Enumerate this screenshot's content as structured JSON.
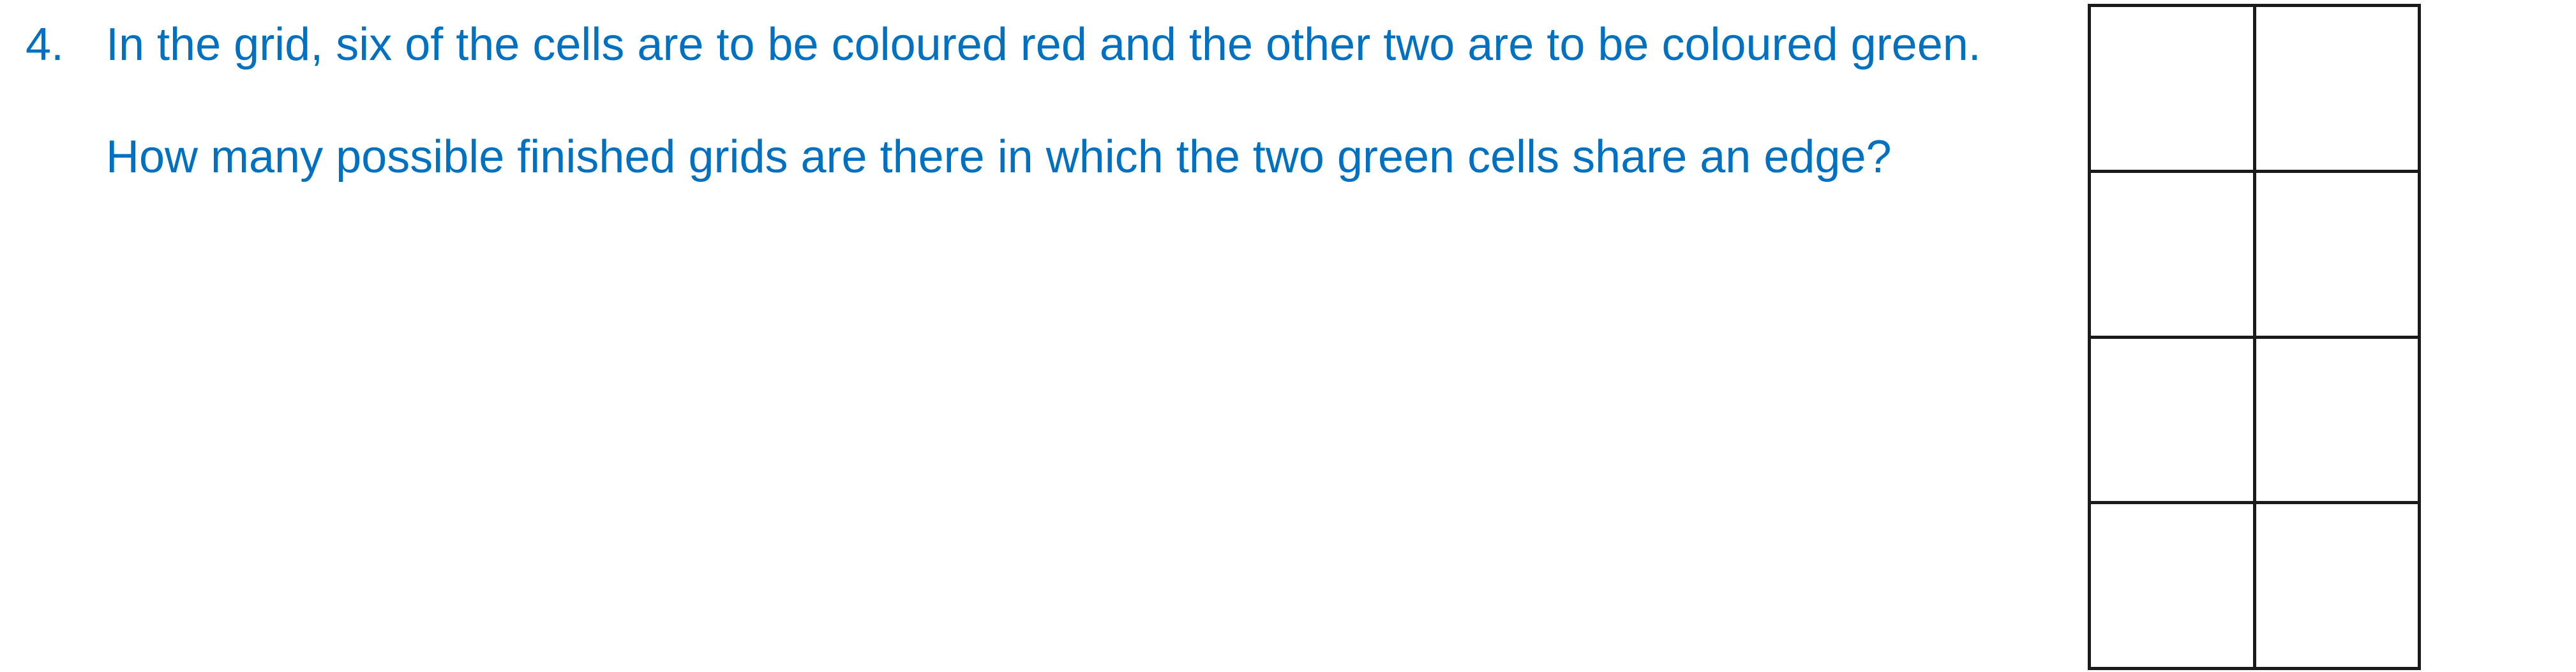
{
  "colors": {
    "text": "#0070c0",
    "grid_line": "#1a1a1a",
    "cell_fill": "#ffffff"
  },
  "question": {
    "number": "4.",
    "line1": "In the grid, six of the cells are to be coloured red and the other two are to be coloured green.",
    "line2": "How many possible finished grids are there in which the two green cells share an edge?"
  },
  "grid": {
    "rows": 4,
    "columns": 2
  }
}
